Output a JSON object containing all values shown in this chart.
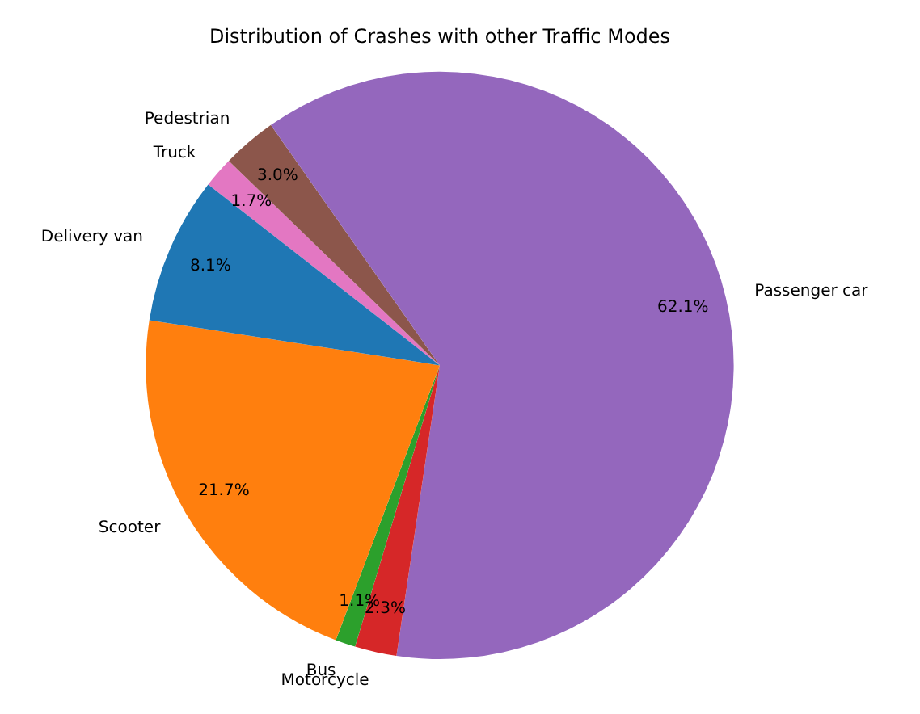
{
  "chart_data": {
    "type": "pie",
    "title": "Distribution of Crashes with other Traffic Modes",
    "categories": [
      "Truck",
      "Pedestrian",
      "Passenger car",
      "Motorcycle",
      "Bus",
      "Scooter",
      "Delivery van"
    ],
    "values": [
      1.7,
      3.0,
      62.1,
      2.3,
      1.1,
      21.7,
      8.1
    ],
    "colors": [
      "#e377c2",
      "#8c564b",
      "#9467bd",
      "#d62728",
      "#2ca02c",
      "#ff7f0e",
      "#1f77b4"
    ],
    "value_labels": [
      "1.7%",
      "3.0%",
      "62.1%",
      "2.3%",
      "1.1%",
      "21.7%",
      "8.1%"
    ],
    "legend": false
  }
}
